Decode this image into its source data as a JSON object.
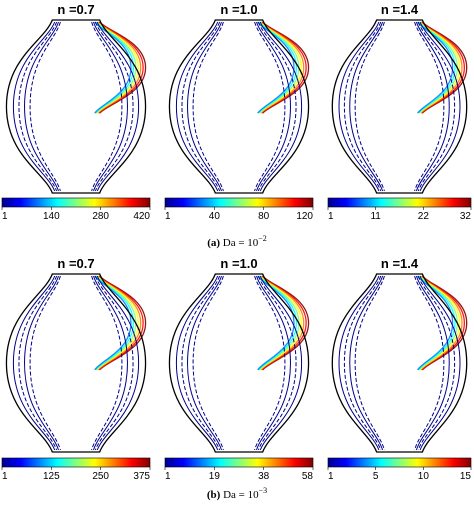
{
  "rows": [
    {
      "caption_label": "(a)",
      "caption_text": "Da = 10",
      "caption_exponent": "−2",
      "panels": [
        {
          "title": "n =0.7",
          "ticks": [
            "1",
            "140",
            "280",
            "420"
          ],
          "stream_side": "wall"
        },
        {
          "title": "n =1.0",
          "ticks": [
            "1",
            "40",
            "80",
            "120"
          ],
          "stream_side": "wall"
        },
        {
          "title": "n =1.4",
          "ticks": [
            "1",
            "11",
            "22",
            "32"
          ],
          "stream_side": "wall"
        }
      ]
    },
    {
      "caption_label": "(b)",
      "caption_text": "Da = 10",
      "caption_exponent": "−3",
      "panels": [
        {
          "title": "n =0.7",
          "ticks": [
            "1",
            "125",
            "250",
            "375"
          ],
          "stream_side": "wall"
        },
        {
          "title": "n =1.0",
          "ticks": [
            "1",
            "19",
            "38",
            "58"
          ],
          "stream_side": "wall"
        },
        {
          "title": "n =1.4",
          "ticks": [
            "1",
            "5",
            "10",
            "15"
          ],
          "stream_side": "wall"
        }
      ]
    }
  ],
  "colormap": [
    "#00008f",
    "#0000ff",
    "#0080ff",
    "#00ffff",
    "#80ff80",
    "#ffff00",
    "#ff8000",
    "#ff0000",
    "#800000"
  ],
  "line_color": "#00008b",
  "outline_color": "#000000"
}
